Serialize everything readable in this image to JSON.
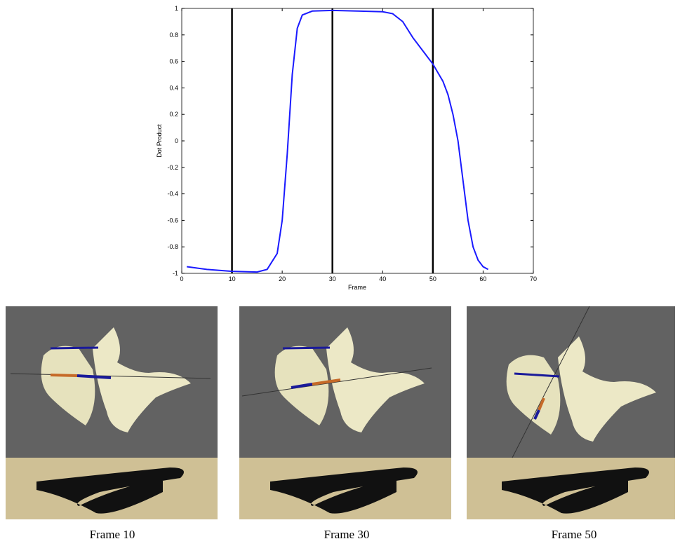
{
  "chart_data": {
    "type": "line",
    "x_label": "Frame",
    "y_label": "Dot Product",
    "x": [
      1,
      5,
      10,
      15,
      17,
      19,
      20,
      21,
      22,
      23,
      24,
      26,
      30,
      35,
      40,
      42,
      44,
      46,
      48,
      50,
      52,
      53,
      54,
      55,
      56,
      57,
      58,
      59,
      60,
      61
    ],
    "series": [
      {
        "color": "#1a1aff",
        "values": [
          -0.95,
          -0.97,
          -0.985,
          -0.99,
          -0.97,
          -0.85,
          -0.6,
          -0.1,
          0.5,
          0.85,
          0.95,
          0.98,
          0.985,
          0.98,
          0.975,
          0.96,
          0.9,
          0.78,
          0.68,
          0.58,
          0.45,
          0.35,
          0.2,
          0,
          -0.3,
          -0.6,
          -0.8,
          -0.9,
          -0.95,
          -0.97
        ]
      }
    ],
    "vlines": [
      10,
      30,
      50
    ],
    "vline_color": "#000000",
    "xlim": [
      0,
      70
    ],
    "xticks": [
      0,
      10,
      20,
      30,
      40,
      50,
      60,
      70
    ],
    "ylim": [
      -1,
      1
    ],
    "yticks": [
      -1,
      -0.8,
      -0.6,
      -0.4,
      -0.2,
      0,
      0.2,
      0.4,
      0.6,
      0.8,
      1
    ]
  },
  "panels": [
    {
      "caption": "Frame 10"
    },
    {
      "caption": "Frame 30"
    },
    {
      "caption": "Frame 50"
    }
  ]
}
